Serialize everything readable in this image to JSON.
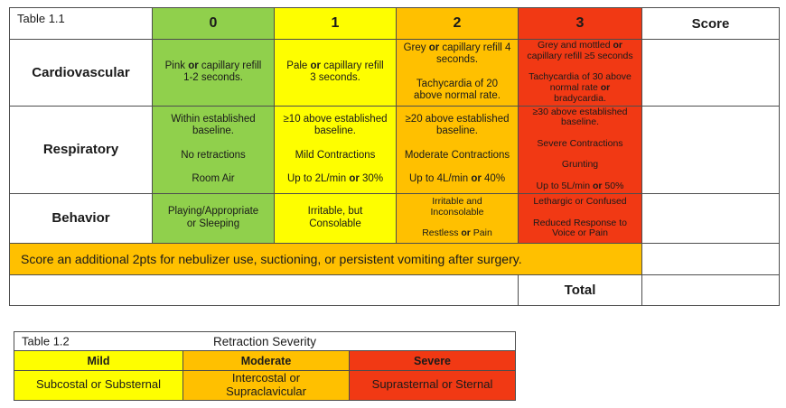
{
  "colors": {
    "green": "#90D04C",
    "yellow": "#FEFE00",
    "orange": "#FFC000",
    "red": "#F13914",
    "border": "#4D4D4D",
    "text": "#1A1A1A"
  },
  "table1": {
    "title": "Table 1.1",
    "col_headers": [
      "0",
      "1",
      "2",
      "3"
    ],
    "score_header": "Score",
    "rows": [
      {
        "label": "Cardiovascular",
        "cells": [
          "Pink **or** capillary refill\n1-2 seconds.",
          "Pale **or** capillary refill\n3 seconds.",
          "Grey **or** capillary refill 4\nseconds.\n\nTachycardia of 20\nabove normal rate.",
          "Grey and mottled **or**\ncapillary refill ≥5 seconds\n\nTachycardia of 30 above\nnormal rate **or**\nbradycardia."
        ]
      },
      {
        "label": "Respiratory",
        "cells": [
          "Within established\nbaseline.\n\nNo retractions\n\nRoom Air",
          "≥10 above established\nbaseline.\n\nMild Contractions\n\nUp to 2L/min **or** 30%",
          "≥20 above established\nbaseline.\n\nModerate Contractions\n\nUp to 4L/min **or** 40%",
          "≥30 above established\nbaseline.\n\nSevere Contractions\n\nGrunting\n\nUp to 5L/min **or** 50%"
        ]
      },
      {
        "label": "Behavior",
        "cells": [
          "Playing/Appropriate\nor Sleeping",
          "Irritable, but\nConsolable",
          "Irritable and\nInconsolable\n\nRestless **or** Pain",
          "Lethargic or Confused\n\nReduced Response to\nVoice or Pain"
        ]
      }
    ],
    "banner": "Score an additional 2pts for nebulizer use, suctioning, or persistent vomiting after surgery.",
    "total_label": "Total"
  },
  "table2": {
    "title": "Table 1.2",
    "heading": "Retraction Severity",
    "col_headers": [
      "Mild",
      "Moderate",
      "Severe"
    ],
    "cells": [
      "Subcostal or Substernal",
      "Intercostal or\nSupraclavicular",
      "Suprasternal or Sternal"
    ]
  }
}
